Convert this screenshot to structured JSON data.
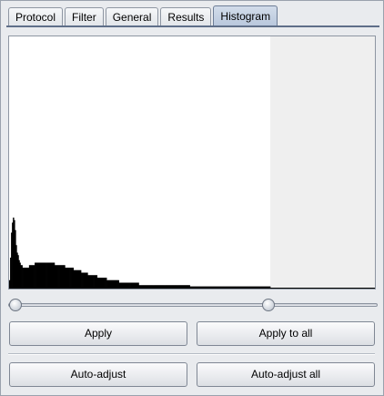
{
  "tabs": [
    {
      "label": "Protocol",
      "active": false
    },
    {
      "label": "Filter",
      "active": false
    },
    {
      "label": "General",
      "active": false
    },
    {
      "label": "Results",
      "active": false
    },
    {
      "label": "Histogram",
      "active": true
    }
  ],
  "histogram": {
    "colors": {
      "bars": "#000000",
      "background": "#ffffff",
      "excluded_region": "#efefef"
    },
    "chart_data": {
      "type": "bar",
      "title": "",
      "xlabel": "",
      "ylabel": "",
      "ylim": [
        0,
        100
      ],
      "cutoff_fraction": 0.713,
      "values": [
        3,
        12,
        22,
        26,
        28,
        27,
        23,
        17,
        14,
        13,
        11,
        10,
        9,
        9,
        8,
        8,
        8,
        8,
        8,
        8,
        8,
        9,
        9,
        9,
        9,
        9,
        9,
        10,
        10,
        10,
        10,
        10,
        10,
        10,
        10,
        10,
        10,
        10,
        10,
        10,
        10,
        10,
        10,
        10,
        10,
        10,
        10,
        10,
        9,
        9,
        9,
        9,
        9,
        9,
        9,
        9,
        9,
        9,
        9,
        8,
        8,
        8,
        8,
        8,
        8,
        8,
        8,
        8,
        7,
        7,
        7,
        7,
        7,
        7,
        7,
        7,
        6,
        6,
        6,
        6,
        6,
        6,
        6,
        5,
        5,
        5,
        5,
        5,
        5,
        5,
        5,
        5,
        5,
        4,
        4,
        4,
        4,
        4,
        4,
        4,
        4,
        4,
        4,
        3,
        3,
        3,
        3,
        3,
        3,
        3,
        3,
        3,
        3,
        3,
        3,
        3,
        2,
        2,
        2,
        2,
        2,
        2,
        2,
        2,
        2,
        2,
        2,
        2,
        2,
        2,
        2,
        2,
        2,
        2,
        2,
        2,
        2,
        1,
        1,
        1,
        1,
        1,
        1,
        1,
        1,
        1,
        1,
        1,
        1,
        1,
        1,
        1,
        1,
        1,
        1,
        1,
        1,
        1,
        1,
        1,
        1,
        1,
        1,
        1,
        1,
        1,
        1,
        1,
        1,
        1,
        1,
        1,
        1,
        1,
        1,
        1,
        1,
        1,
        1,
        1,
        1,
        1,
        1,
        1,
        1,
        1,
        1,
        1,
        1,
        1,
        1,
        0.5,
        0.5,
        0.5,
        0.5,
        0.5,
        0.5,
        0.5,
        0.5,
        0.5,
        0.5,
        0.5,
        0.5,
        0.5,
        0.5,
        0.5,
        0.5,
        0.5,
        0.5,
        0.5,
        0.5,
        0.5,
        0.5,
        0.5,
        0.5,
        0.5,
        0.5,
        0.5,
        0.5,
        0.5,
        0.5,
        0.5,
        0.5,
        0.5,
        0.5,
        0.5,
        0.5,
        0.5,
        0.5,
        0.5,
        0.5,
        0.5,
        0.5,
        0.5,
        0.5,
        0.5,
        0.5,
        0.5,
        0.5,
        0.5,
        0.5,
        0.5,
        0.5,
        0.5,
        0.5,
        0.5,
        0.5,
        0.5,
        0.5,
        0.5,
        0.5,
        0.5,
        0.5,
        0.5,
        0.5,
        0.5,
        0.5,
        0.5,
        0.5,
        0.5,
        0.5,
        0.5,
        0.5,
        0.5,
        0.5,
        0.5,
        0.5,
        0.5,
        0.5,
        0.5,
        0.5,
        0.5,
        0.5,
        0.5,
        0.5,
        0.5
      ]
    }
  },
  "slider": {
    "range": [
      0,
      1
    ],
    "low_value": 0.0,
    "high_value": 0.713
  },
  "buttons": {
    "apply": "Apply",
    "apply_all": "Apply to all",
    "auto_adjust": "Auto-adjust",
    "auto_adjust_all": "Auto-adjust all"
  }
}
